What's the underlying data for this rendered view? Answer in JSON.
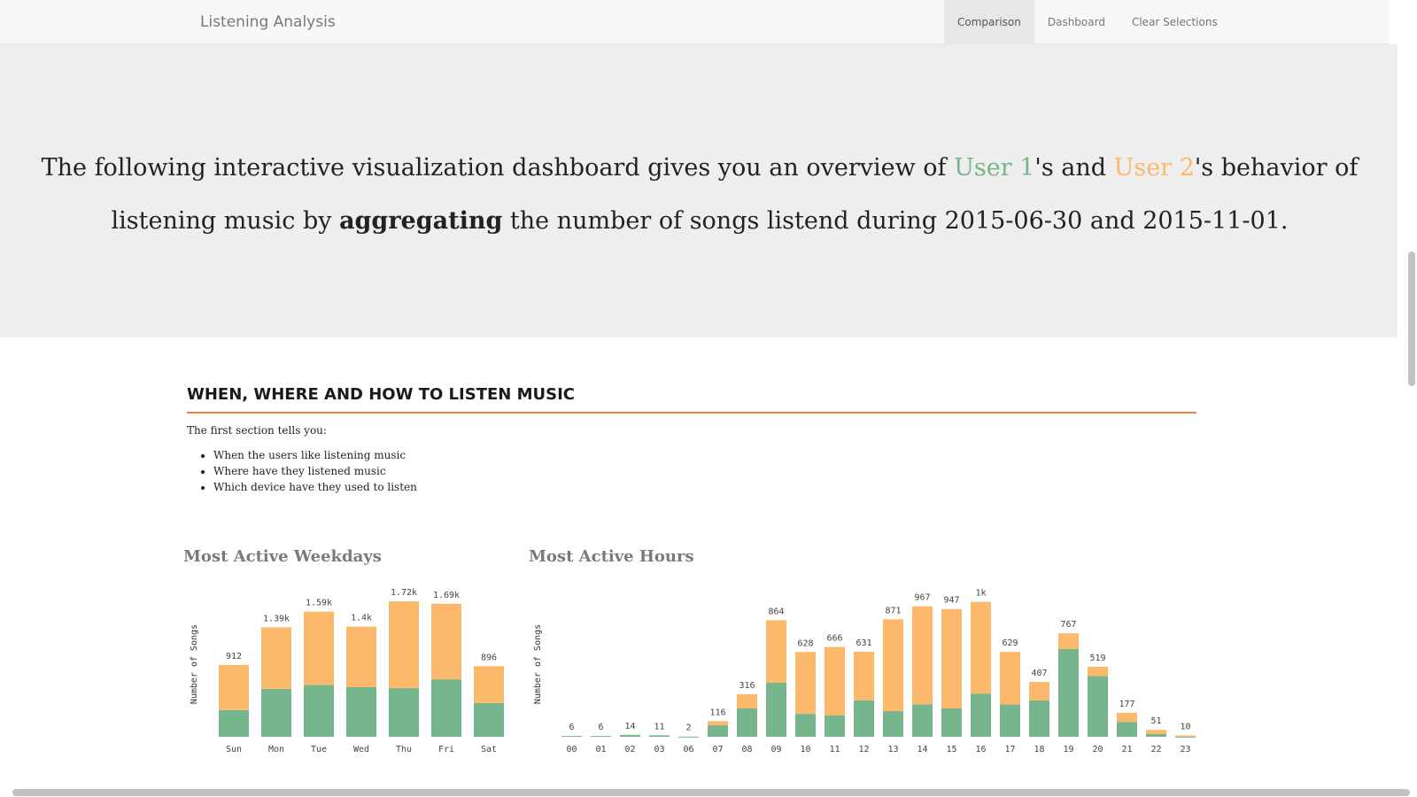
{
  "navbar": {
    "brand": "Listening Analysis",
    "items": [
      "Comparison",
      "Dashboard",
      "Clear Selections"
    ]
  },
  "header": {
    "part1": "The following interactive visualization dashboard gives you an overview of ",
    "user1": "User 1",
    "part2": "'s and ",
    "user2": "User 2",
    "part3": "'s behavior of listening music by ",
    "bold": "aggregating",
    "part4": " the number of songs listend during 2015-06-30 and 2015-11-01."
  },
  "section": {
    "title": "WHEN, WHERE AND HOW TO LISTEN MUSIC",
    "intro": "The first section tells you:",
    "bullets": [
      "When the users like listening music",
      "Where have they listened music",
      "Which device have they used to listen"
    ]
  },
  "colors": {
    "user1": "#77b58c",
    "user2": "#fdb96b",
    "rule": "#f07f45"
  },
  "chart_data": [
    {
      "type": "bar",
      "title": "Most Active Weekdays",
      "ylabel": "Number of Songs",
      "xlabel": "",
      "ylim": [
        0,
        1800
      ],
      "categories": [
        "Sun",
        "Mon",
        "Tue",
        "Wed",
        "Thu",
        "Fri",
        "Sat"
      ],
      "labels": [
        "912",
        "1.39k",
        "1.59k",
        "1.4k",
        "1.72k",
        "1.69k",
        "896"
      ],
      "series": [
        {
          "name": "User 1",
          "values": [
            340,
            610,
            660,
            630,
            620,
            730,
            430
          ]
        },
        {
          "name": "User 2",
          "values": [
            572,
            780,
            930,
            770,
            1100,
            960,
            466
          ]
        }
      ]
    },
    {
      "type": "bar",
      "title": "Most Active Hours",
      "ylabel": "Number of Songs",
      "xlabel": "",
      "ylim": [
        0,
        1050
      ],
      "categories": [
        "00",
        "01",
        "02",
        "03",
        "06",
        "07",
        "08",
        "09",
        "10",
        "11",
        "12",
        "13",
        "14",
        "15",
        "16",
        "17",
        "18",
        "19",
        "20",
        "21",
        "22",
        "23"
      ],
      "labels": [
        "6",
        "6",
        "14",
        "11",
        "2",
        "116",
        "316",
        "864",
        "628",
        "666",
        "631",
        "871",
        "967",
        "947",
        "1k",
        "629",
        "407",
        "767",
        "519",
        "177",
        "51",
        "10"
      ],
      "series": [
        {
          "name": "User 1",
          "values": [
            6,
            6,
            14,
            11,
            1,
            85,
            210,
            400,
            170,
            160,
            270,
            190,
            240,
            210,
            320,
            240,
            270,
            650,
            450,
            110,
            20,
            1
          ]
        },
        {
          "name": "User 2",
          "values": [
            0,
            0,
            0,
            0,
            1,
            31,
            106,
            464,
            458,
            506,
            361,
            681,
            727,
            737,
            680,
            389,
            137,
            117,
            69,
            67,
            31,
            9
          ]
        }
      ]
    }
  ]
}
